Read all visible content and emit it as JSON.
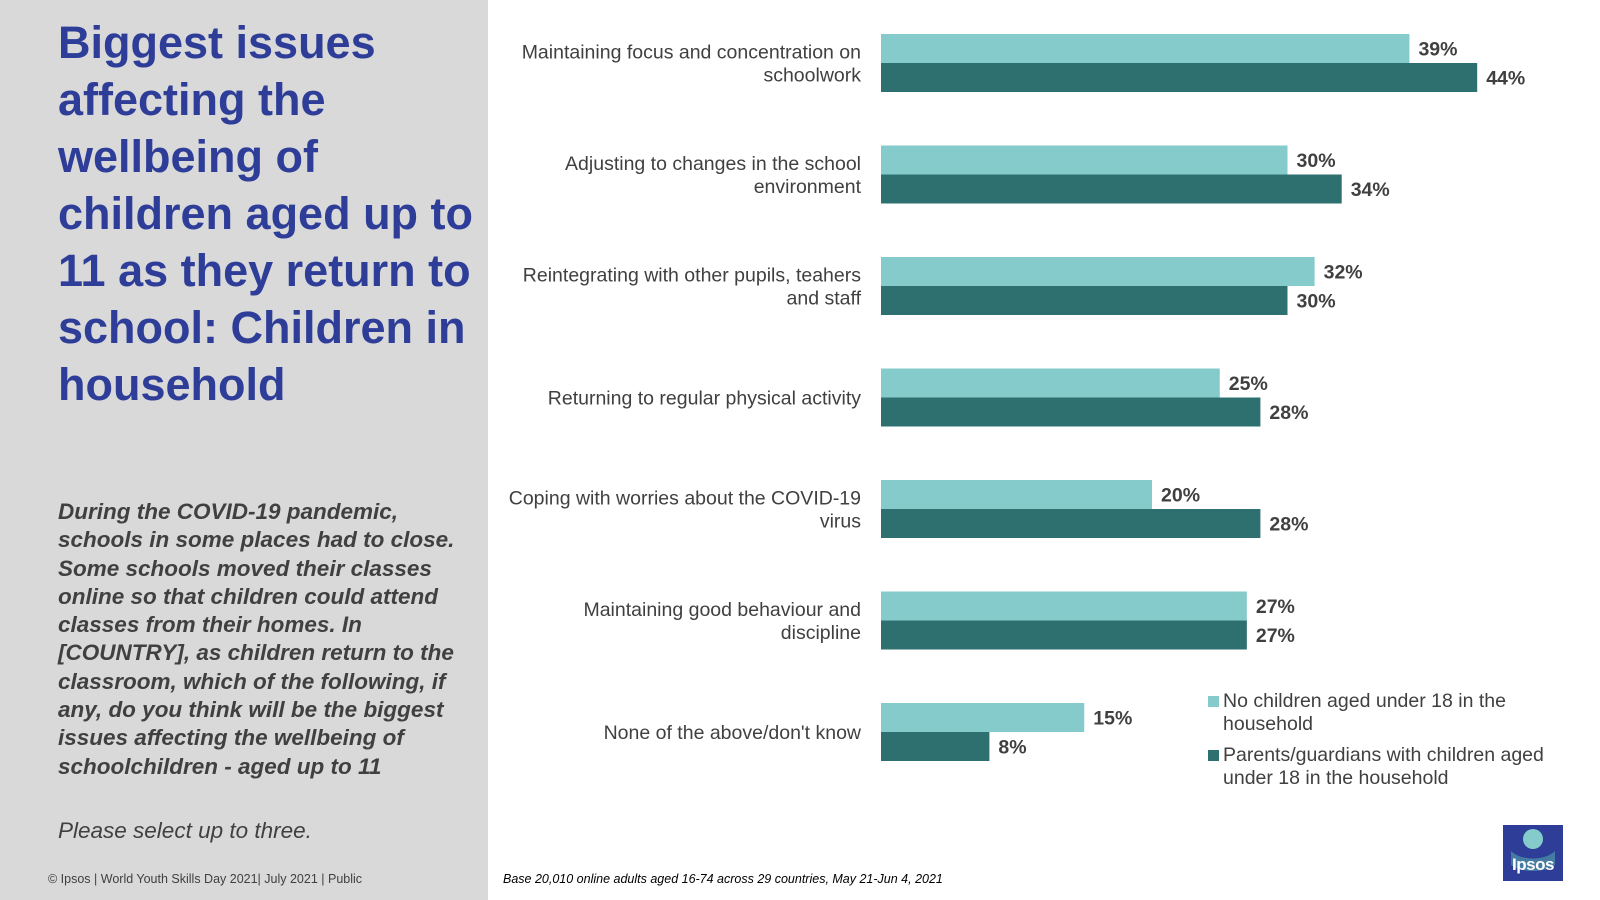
{
  "title": "Biggest issues affecting the wellbeing of children aged up to 11 as they return to school: Children in household",
  "question": "During the COVID-19 pandemic, schools in some places had to close. Some schools moved their classes online so that children could attend classes from their homes. In [COUNTRY], as children return to the classroom, which of the following, if any, do you think will be the biggest issues affecting the wellbeing of schoolchildren - aged up to 11",
  "instruction": "Please select up to three.",
  "footer": {
    "copyright": "© Ipsos | World Youth Skills Day 2021| July 2021 | Public",
    "base": "Base 20,010 online adults aged 16-74 across 29 countries,  May 21-Jun 4, 2021"
  },
  "logo": {
    "text": "Ipsos"
  },
  "colors": {
    "light": "#86cbcb",
    "dark": "#2e7070",
    "title": "#2e3d98"
  },
  "chart_data": {
    "type": "bar",
    "orientation": "horizontal",
    "value_suffix": "%",
    "xlim": [
      0,
      50
    ],
    "categories": [
      [
        "Maintaining focus and concentration on",
        "schoolwork"
      ],
      [
        "Adjusting to changes in the school",
        "environment"
      ],
      [
        "Reintegrating with other pupils, teahers",
        "and staff"
      ],
      [
        "Returning to regular physical activity"
      ],
      [
        "Coping with worries about the COVID-19",
        "virus"
      ],
      [
        "Maintaining good behaviour and",
        "discipline"
      ],
      [
        "None of the above/don't know"
      ]
    ],
    "series": [
      {
        "name": "No children aged under 18 in the household",
        "legend_lines": [
          "No children aged under 18 in the",
          "household"
        ],
        "color": "#86cbcb",
        "values": [
          39,
          30,
          32,
          25,
          20,
          27,
          15
        ]
      },
      {
        "name": "Parents/guardians with children aged under 18 in the household",
        "legend_lines": [
          "Parents/guardians with children aged",
          "under 18 in the household"
        ],
        "color": "#2e7070",
        "values": [
          44,
          34,
          30,
          28,
          28,
          27,
          8
        ]
      }
    ]
  }
}
